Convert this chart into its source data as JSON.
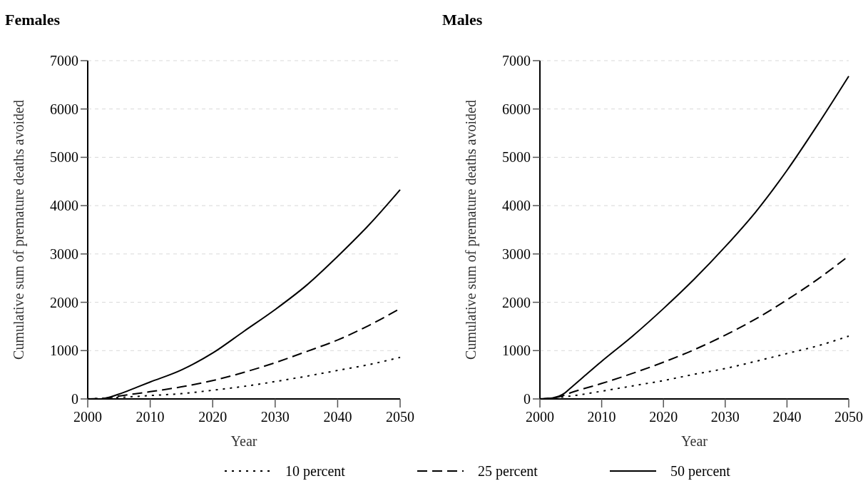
{
  "chart_data": [
    {
      "type": "line",
      "title": "Females",
      "xlabel": "Year",
      "ylabel": "Cumulative sum of premature deaths avoided",
      "xlim": [
        2000,
        2050
      ],
      "xticks": [
        2000,
        2010,
        2020,
        2030,
        2040,
        2050
      ],
      "ylim": [
        0,
        7000
      ],
      "yticks": [
        0,
        1000,
        2000,
        3000,
        4000,
        5000,
        6000,
        7000
      ],
      "grid": "y",
      "legend": "bottom",
      "series": [
        {
          "name": "10 percent",
          "color": "#000000",
          "line_style": "dotted",
          "x": [
            2000,
            2005,
            2010,
            2015,
            2020,
            2025,
            2030,
            2035,
            2040,
            2045,
            2050
          ],
          "values": [
            0,
            30,
            70,
            110,
            180,
            260,
            360,
            470,
            590,
            710,
            860
          ]
        },
        {
          "name": "25 percent",
          "color": "#000000",
          "line_style": "dashed",
          "x": [
            2000,
            2003,
            2005,
            2010,
            2015,
            2020,
            2025,
            2030,
            2035,
            2040,
            2045,
            2050
          ],
          "values": [
            0,
            20,
            60,
            150,
            250,
            380,
            550,
            750,
            980,
            1220,
            1520,
            1870
          ]
        },
        {
          "name": "50 percent",
          "color": "#000000",
          "line_style": "solid",
          "x": [
            2000,
            2002,
            2005,
            2008,
            2010,
            2015,
            2020,
            2025,
            2030,
            2035,
            2040,
            2045,
            2050
          ],
          "values": [
            0,
            0,
            100,
            250,
            350,
            600,
            950,
            1400,
            1850,
            2350,
            2950,
            3600,
            4330
          ]
        }
      ]
    },
    {
      "type": "line",
      "title": "Males",
      "xlabel": "Year",
      "ylabel": "Cumulative sum of premature deaths avoided",
      "xlim": [
        2000,
        2050
      ],
      "xticks": [
        2000,
        2010,
        2020,
        2030,
        2040,
        2050
      ],
      "ylim": [
        0,
        7000
      ],
      "yticks": [
        0,
        1000,
        2000,
        3000,
        4000,
        5000,
        6000,
        7000
      ],
      "grid": "y",
      "legend": "bottom",
      "series": [
        {
          "name": "10 percent",
          "color": "#000000",
          "line_style": "dotted",
          "x": [
            2000,
            2005,
            2010,
            2015,
            2020,
            2025,
            2030,
            2035,
            2040,
            2045,
            2050
          ],
          "values": [
            0,
            60,
            160,
            270,
            380,
            510,
            630,
            780,
            940,
            1100,
            1300
          ]
        },
        {
          "name": "25 percent",
          "color": "#000000",
          "line_style": "dashed",
          "x": [
            2000,
            2003,
            2005,
            2010,
            2015,
            2020,
            2025,
            2030,
            2035,
            2040,
            2045,
            2050
          ],
          "values": [
            0,
            40,
            130,
            320,
            530,
            760,
            1020,
            1320,
            1660,
            2050,
            2480,
            2960
          ]
        },
        {
          "name": "50 percent",
          "color": "#000000",
          "line_style": "solid",
          "x": [
            2000,
            2002,
            2004,
            2005,
            2007,
            2010,
            2015,
            2020,
            2025,
            2030,
            2035,
            2040,
            2045,
            2050
          ],
          "values": [
            0,
            20,
            120,
            230,
            450,
            780,
            1300,
            1870,
            2480,
            3150,
            3880,
            4730,
            5680,
            6680
          ]
        }
      ]
    }
  ]
}
